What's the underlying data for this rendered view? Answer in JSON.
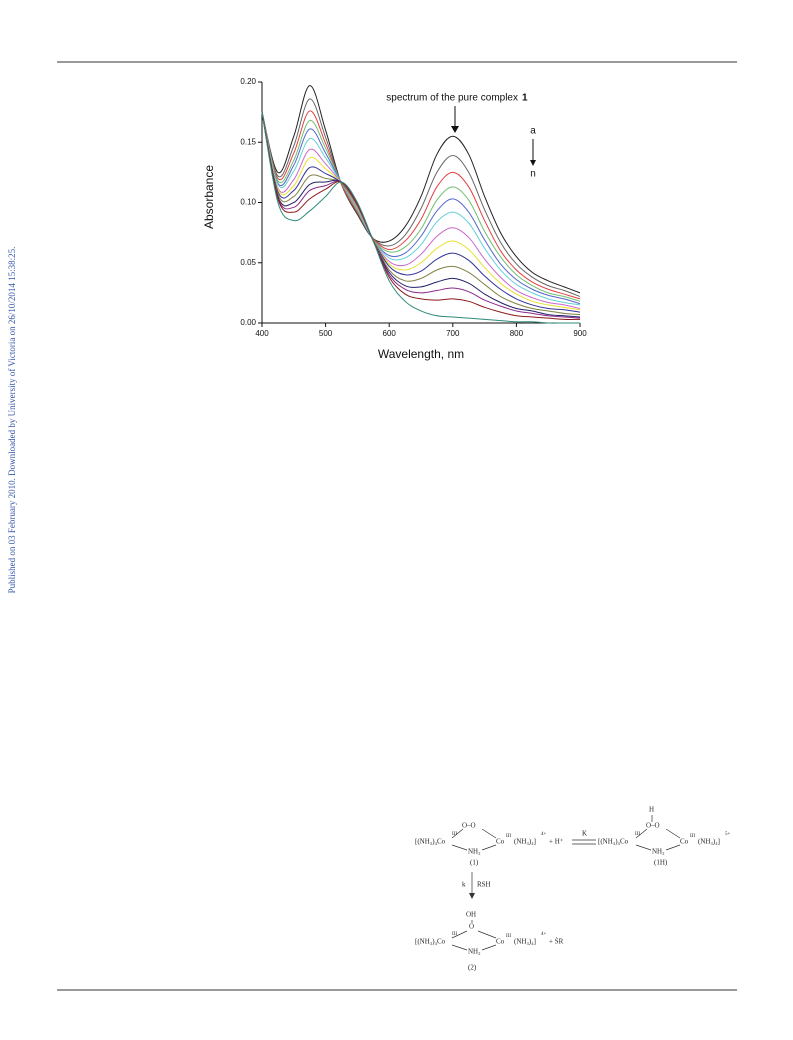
{
  "side_note": "Published on 03 February 2010. Downloaded by University of Victoria on 26/10/2014 15:38:25.",
  "chart_data": {
    "type": "line",
    "ylabel": "Absorbance",
    "xlabel": "Wavelength, nm",
    "annotation": "spectrum of the pure complex",
    "annotation_bold": "1",
    "arrow_start": "a",
    "arrow_end": "n",
    "xlim": [
      400,
      900
    ],
    "xticks": [
      400,
      500,
      600,
      700,
      800,
      900
    ],
    "ylim": [
      0,
      0.2
    ],
    "yticks": [
      {
        "value": 0,
        "label": "0.00"
      },
      {
        "value": 0.05,
        "label": "0.05"
      },
      {
        "value": 0.1,
        "label": "0.10"
      },
      {
        "value": 0.15,
        "label": "0.15"
      },
      {
        "value": 0.2,
        "label": "0.20"
      }
    ],
    "x": [
      400,
      425,
      450,
      475,
      500,
      525,
      550,
      575,
      600,
      625,
      650,
      675,
      700,
      725,
      750,
      775,
      800,
      825,
      850,
      875,
      900
    ],
    "series": [
      {
        "color": "#222222",
        "values": [
          0.175,
          0.125,
          0.155,
          0.197,
          0.16,
          0.115,
          0.09,
          0.07,
          0.068,
          0.08,
          0.105,
          0.14,
          0.155,
          0.14,
          0.105,
          0.075,
          0.055,
          0.042,
          0.035,
          0.03,
          0.025
        ]
      },
      {
        "color": "#666666",
        "values": [
          0.175,
          0.122,
          0.147,
          0.186,
          0.154,
          0.115,
          0.091,
          0.07,
          0.064,
          0.073,
          0.095,
          0.125,
          0.139,
          0.125,
          0.094,
          0.067,
          0.049,
          0.038,
          0.031,
          0.027,
          0.022
        ]
      },
      {
        "color": "#e04040",
        "values": [
          0.175,
          0.12,
          0.141,
          0.176,
          0.149,
          0.115,
          0.092,
          0.07,
          0.061,
          0.068,
          0.086,
          0.113,
          0.125,
          0.113,
          0.085,
          0.06,
          0.044,
          0.034,
          0.028,
          0.024,
          0.02
        ]
      },
      {
        "color": "#70c070",
        "values": [
          0.175,
          0.118,
          0.135,
          0.168,
          0.145,
          0.116,
          0.093,
          0.069,
          0.059,
          0.063,
          0.078,
          0.102,
          0.113,
          0.102,
          0.076,
          0.055,
          0.04,
          0.031,
          0.025,
          0.022,
          0.018
        ]
      },
      {
        "color": "#5566cc",
        "values": [
          0.175,
          0.116,
          0.131,
          0.161,
          0.141,
          0.116,
          0.094,
          0.069,
          0.056,
          0.058,
          0.072,
          0.093,
          0.103,
          0.092,
          0.069,
          0.049,
          0.036,
          0.028,
          0.023,
          0.02,
          0.016
        ]
      },
      {
        "color": "#66d0d8",
        "values": [
          0.175,
          0.115,
          0.126,
          0.153,
          0.137,
          0.116,
          0.094,
          0.069,
          0.054,
          0.054,
          0.065,
          0.084,
          0.092,
          0.083,
          0.062,
          0.044,
          0.032,
          0.025,
          0.02,
          0.017,
          0.015
        ]
      },
      {
        "color": "#cc66cc",
        "values": [
          0.175,
          0.112,
          0.119,
          0.144,
          0.132,
          0.116,
          0.095,
          0.069,
          0.051,
          0.048,
          0.057,
          0.072,
          0.079,
          0.071,
          0.053,
          0.038,
          0.027,
          0.021,
          0.017,
          0.015,
          0.012
        ]
      },
      {
        "color": "#e8e030",
        "values": [
          0.175,
          0.111,
          0.114,
          0.137,
          0.128,
          0.116,
          0.096,
          0.069,
          0.049,
          0.044,
          0.05,
          0.062,
          0.068,
          0.061,
          0.046,
          0.033,
          0.024,
          0.018,
          0.015,
          0.013,
          0.011
        ]
      },
      {
        "color": "#333399",
        "values": [
          0.175,
          0.109,
          0.11,
          0.129,
          0.124,
          0.116,
          0.097,
          0.069,
          0.047,
          0.04,
          0.043,
          0.053,
          0.058,
          0.052,
          0.039,
          0.028,
          0.02,
          0.015,
          0.012,
          0.011,
          0.009
        ]
      },
      {
        "color": "#808040",
        "values": [
          0.175,
          0.107,
          0.105,
          0.122,
          0.12,
          0.116,
          0.097,
          0.069,
          0.044,
          0.035,
          0.037,
          0.044,
          0.047,
          0.042,
          0.032,
          0.022,
          0.016,
          0.012,
          0.01,
          0.008,
          0.007
        ]
      },
      {
        "color": "#22226a",
        "values": [
          0.175,
          0.105,
          0.1,
          0.115,
          0.117,
          0.117,
          0.098,
          0.068,
          0.042,
          0.031,
          0.03,
          0.034,
          0.037,
          0.033,
          0.024,
          0.017,
          0.012,
          0.01,
          0.007,
          0.006,
          0.005
        ]
      },
      {
        "color": "#8b2b8b",
        "values": [
          0.175,
          0.104,
          0.096,
          0.11,
          0.114,
          0.117,
          0.098,
          0.068,
          0.04,
          0.028,
          0.025,
          0.027,
          0.029,
          0.026,
          0.019,
          0.014,
          0.01,
          0.008,
          0.006,
          0.005,
          0.004
        ]
      },
      {
        "color": "#8b1a1a",
        "values": [
          0.175,
          0.103,
          0.092,
          0.103,
          0.111,
          0.117,
          0.099,
          0.068,
          0.038,
          0.024,
          0.02,
          0.019,
          0.02,
          0.018,
          0.013,
          0.009,
          0.006,
          0.005,
          0.004,
          0.003,
          0.003
        ]
      },
      {
        "color": "#2e8b7a",
        "values": [
          0.175,
          0.1,
          0.085,
          0.093,
          0.105,
          0.117,
          0.1,
          0.068,
          0.035,
          0.018,
          0.01,
          0.006,
          0.005,
          0.004,
          0.003,
          0.002,
          0.001,
          0.001,
          0,
          0,
          0
        ]
      }
    ]
  },
  "scheme": {
    "texts": [
      "[(NH₃)₄Co",
      "III",
      "O–O",
      "NH₂",
      "Co",
      "III",
      "(NH₃)₄]",
      "4+",
      "+ H⁺",
      "K",
      "(1)",
      "H",
      "[(NH₃)₄Co",
      "III",
      "O–O",
      "NH₂",
      "Co",
      "III",
      "(NH₃)₄]",
      "5+",
      "(1H)",
      "k",
      "RSH",
      "OH",
      "O",
      "[(NH₃)₄Co",
      "III",
      "NH₂",
      "Co",
      "III",
      "(NH₃)₄]",
      "4+",
      "+ ṠR",
      "(2)"
    ]
  }
}
